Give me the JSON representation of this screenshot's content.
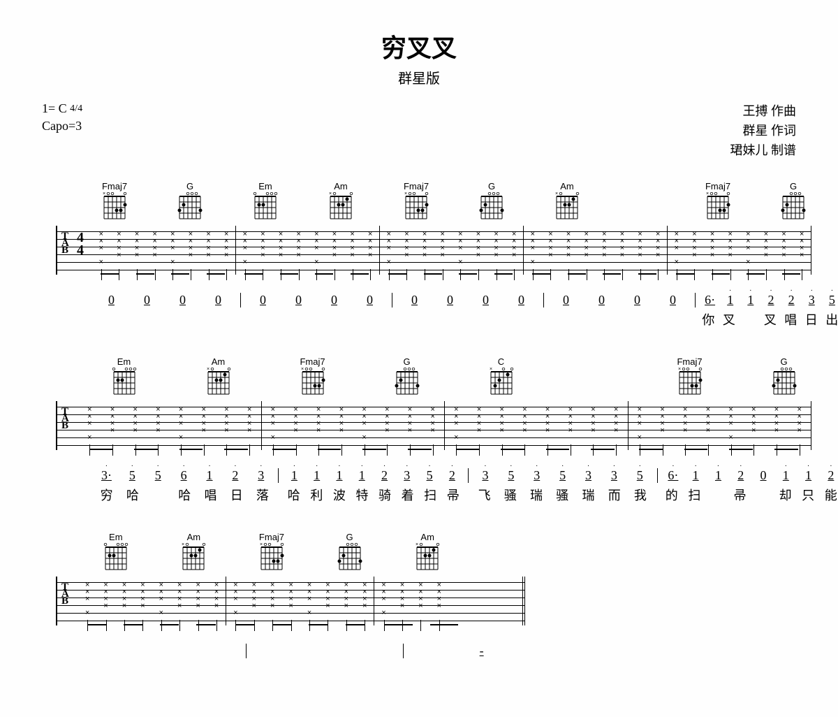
{
  "title": "穷叉叉",
  "subtitle": "群星版",
  "key_sig": "1= C",
  "time_sig_top": "4",
  "time_sig_bot": "4",
  "capo": "Capo=3",
  "credits": [
    "王搏 作曲",
    "群星 作词",
    "珺妹儿 制谱"
  ],
  "chord_shapes": {
    "Fmaj7": {
      "barre": 0,
      "dots": [
        [
          1,
          2
        ],
        [
          2,
          3
        ],
        [
          3,
          3
        ]
      ],
      "mutes": [
        6
      ],
      "open": [
        1,
        4,
        5
      ]
    },
    "G": {
      "barre": 0,
      "dots": [
        [
          1,
          3
        ],
        [
          5,
          2
        ],
        [
          6,
          3
        ]
      ],
      "mutes": [],
      "open": [
        2,
        3,
        4
      ]
    },
    "Em": {
      "barre": 0,
      "dots": [
        [
          4,
          2
        ],
        [
          5,
          2
        ]
      ],
      "mutes": [],
      "open": [
        1,
        2,
        3,
        6
      ]
    },
    "Am": {
      "barre": 0,
      "dots": [
        [
          2,
          1
        ],
        [
          3,
          2
        ],
        [
          4,
          2
        ]
      ],
      "mutes": [
        6
      ],
      "open": [
        1,
        5
      ]
    },
    "C": {
      "barre": 0,
      "dots": [
        [
          2,
          1
        ],
        [
          4,
          2
        ],
        [
          5,
          3
        ]
      ],
      "mutes": [
        6
      ],
      "open": [
        1,
        3
      ]
    }
  },
  "systems": [
    {
      "has_clef": true,
      "measures": [
        {
          "chords": [
            "Fmaj7",
            "G"
          ],
          "beats": 8,
          "strum": "xxxxxxxx",
          "bass_on": [
            0,
            4
          ],
          "jianpu": [
            "0",
            "0",
            "0",
            "0"
          ],
          "lyrics": [
            "",
            "",
            "",
            ""
          ]
        },
        {
          "chords": [
            "Em",
            "Am"
          ],
          "beats": 8,
          "strum": "xxxxxxxx",
          "bass_on": [
            0,
            4
          ],
          "jianpu": [
            "0",
            "0",
            "0",
            "0"
          ],
          "lyrics": [
            "",
            "",
            "",
            ""
          ]
        },
        {
          "chords": [
            "Fmaj7",
            "G"
          ],
          "beats": 8,
          "strum": "xxxxxxxx",
          "bass_on": [
            0,
            4
          ],
          "jianpu": [
            "0",
            "0",
            "0",
            "0"
          ],
          "lyrics": [
            "",
            "",
            "",
            ""
          ]
        },
        {
          "chords": [
            "Am",
            ""
          ],
          "beats": 8,
          "strum": "xxxxxxxx",
          "bass_on": [
            0
          ],
          "jianpu": [
            "0",
            "0",
            "0",
            "0"
          ],
          "lyrics": [
            "",
            "",
            "",
            ""
          ]
        },
        {
          "chords": [
            "Fmaj7",
            "G"
          ],
          "beats": 8,
          "strum": "xxxxxxxx",
          "bass_on": [
            0,
            4
          ],
          "jianpu": [
            "6·",
            "1",
            "1",
            "2",
            "2",
            "3",
            "5"
          ],
          "jdots": [
            0,
            1,
            1,
            1,
            1,
            1,
            1
          ],
          "lyrics": [
            "你",
            "叉",
            "",
            "叉",
            "唱",
            "日",
            "出"
          ]
        }
      ]
    },
    {
      "has_clef": false,
      "measures": [
        {
          "chords": [
            "Em",
            "Am"
          ],
          "beats": 8,
          "strum": "xxxxxxxx",
          "bass_on": [
            0,
            4
          ],
          "jianpu": [
            "3·",
            "5",
            "5",
            "6",
            "1",
            "2",
            "3"
          ],
          "jdots": [
            1,
            1,
            1,
            1,
            1,
            1,
            1
          ],
          "lyrics": [
            "穷",
            "哈",
            "",
            "哈",
            "唱",
            "日",
            "落"
          ]
        },
        {
          "chords": [
            "Fmaj7",
            "G"
          ],
          "beats": 8,
          "strum": "xxxxxxxx",
          "bass_on": [
            0,
            4
          ],
          "jianpu": [
            "1",
            "1",
            "1",
            "1",
            "2",
            "3",
            "5",
            "2"
          ],
          "jdots": [
            1,
            1,
            1,
            1,
            1,
            1,
            1,
            1
          ],
          "lyrics": [
            "哈",
            "利",
            "波",
            "特",
            "骑",
            "着",
            "扫",
            "帚"
          ]
        },
        {
          "chords": [
            "C",
            ""
          ],
          "beats": 8,
          "strum": "xxxxxxxx",
          "bass_on": [
            0
          ],
          "jianpu": [
            "3",
            "5",
            "3",
            "5",
            "3",
            "3",
            "5"
          ],
          "jdots": [
            1,
            1,
            1,
            1,
            1,
            1,
            1
          ],
          "lyrics": [
            "飞",
            "骚",
            "瑞",
            "骚",
            "瑞",
            "而",
            "我"
          ]
        },
        {
          "chords": [
            "Fmaj7",
            "G"
          ],
          "beats": 8,
          "strum": "xxxxxxxx",
          "bass_on": [
            0,
            4
          ],
          "jianpu": [
            "6·",
            "1",
            "1",
            "2",
            "0",
            "1",
            "1",
            "2"
          ],
          "jdots": [
            1,
            1,
            1,
            1,
            0,
            1,
            1,
            1
          ],
          "lyrics": [
            "的",
            "扫",
            "",
            "帚",
            "",
            "却",
            "只",
            "能"
          ]
        }
      ]
    },
    {
      "has_clef": false,
      "short": true,
      "measures": [
        {
          "chords": [
            "Em",
            "Am"
          ],
          "beats": 8,
          "strum": "xxxxxxxx",
          "bass_on": [
            0,
            4
          ],
          "jianpu": [],
          "lyrics": []
        },
        {
          "chords": [
            "Fmaj7",
            "G"
          ],
          "beats": 8,
          "strum": "xxxxxxxx",
          "bass_on": [
            0,
            4
          ],
          "jianpu": [],
          "lyrics": []
        },
        {
          "chords": [
            "Am",
            ""
          ],
          "beats": 8,
          "strum": "xxxx----",
          "bass_on": [
            0
          ],
          "jianpu": [
            "-"
          ],
          "lyrics": [],
          "end": true
        }
      ]
    }
  ],
  "colors": {
    "line": "#000000",
    "bg": "#fefefe"
  }
}
